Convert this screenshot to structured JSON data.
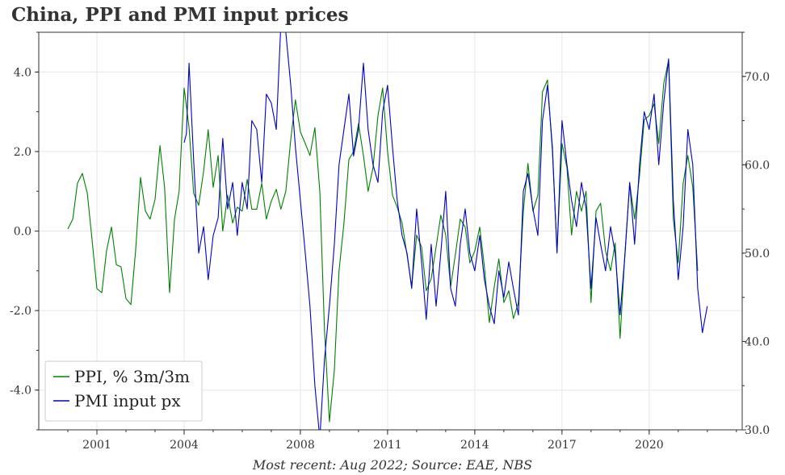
{
  "title": "China, PPI and PMI input prices",
  "footer": "Most recent: Aug 2022; Source: EAE, NBS",
  "colors": {
    "ppi": "#008000",
    "pmi": "#0000cc",
    "grid": "#e6e6e6",
    "axis": "#333333"
  },
  "chart_data": {
    "type": "line",
    "title": "China, PPI and PMI input prices",
    "x_axis": {
      "min": 1999.0,
      "max": 2023.2,
      "ticks": [
        2001,
        2004,
        2008,
        2011,
        2014,
        2017,
        2020
      ],
      "tick_labels": [
        "2001",
        "2004",
        "2008",
        "2011",
        "2014",
        "2017",
        "2020"
      ]
    },
    "y_left": {
      "min": -5.0,
      "max": 5.0,
      "ticks": [
        -4.0,
        -2.0,
        0.0,
        2.0,
        4.0
      ],
      "tick_labels": [
        "-4.0",
        "-2.0",
        "0.0",
        "2.0",
        "4.0"
      ]
    },
    "y_right": {
      "min": 30.0,
      "max": 75.0,
      "ticks": [
        30.0,
        40.0,
        50.0,
        60.0,
        70.0
      ],
      "tick_labels": [
        "30.0",
        "40.0",
        "50.0",
        "60.0",
        "70.0"
      ]
    },
    "legend": {
      "position": "bottom-left",
      "entries": [
        "PPI, % 3m/3m",
        "PMI input px"
      ]
    },
    "series": [
      {
        "name": "PPI, % 3m/3m",
        "axis": "left",
        "color": "#008000",
        "points": [
          [
            2000.0,
            0.05
          ],
          [
            2000.17,
            0.3
          ],
          [
            2000.33,
            1.2
          ],
          [
            2000.5,
            1.45
          ],
          [
            2000.67,
            0.95
          ],
          [
            2000.83,
            -0.2
          ],
          [
            2001.0,
            -1.45
          ],
          [
            2001.17,
            -1.55
          ],
          [
            2001.33,
            -0.5
          ],
          [
            2001.5,
            0.1
          ],
          [
            2001.67,
            -0.85
          ],
          [
            2001.83,
            -0.9
          ],
          [
            2002.0,
            -1.7
          ],
          [
            2002.17,
            -1.85
          ],
          [
            2002.33,
            -0.5
          ],
          [
            2002.5,
            1.35
          ],
          [
            2002.67,
            0.5
          ],
          [
            2002.83,
            0.3
          ],
          [
            2003.0,
            0.8
          ],
          [
            2003.17,
            2.15
          ],
          [
            2003.33,
            1.1
          ],
          [
            2003.5,
            -1.55
          ],
          [
            2003.67,
            0.3
          ],
          [
            2003.83,
            1.0
          ],
          [
            2004.0,
            3.6
          ],
          [
            2004.17,
            2.6
          ],
          [
            2004.33,
            0.95
          ],
          [
            2004.5,
            0.65
          ],
          [
            2004.67,
            1.5
          ],
          [
            2004.83,
            2.55
          ],
          [
            2005.0,
            1.1
          ],
          [
            2005.17,
            1.9
          ],
          [
            2005.33,
            0.0
          ],
          [
            2005.5,
            0.9
          ],
          [
            2005.67,
            0.2
          ],
          [
            2005.83,
            0.6
          ],
          [
            2006.0,
            0.5
          ],
          [
            2006.17,
            1.3
          ],
          [
            2006.33,
            0.55
          ],
          [
            2006.5,
            0.55
          ],
          [
            2006.67,
            1.2
          ],
          [
            2006.83,
            0.3
          ],
          [
            2007.0,
            0.75
          ],
          [
            2007.17,
            1.05
          ],
          [
            2007.33,
            0.55
          ],
          [
            2007.5,
            1.0
          ],
          [
            2007.67,
            2.3
          ],
          [
            2007.83,
            3.3
          ],
          [
            2008.0,
            2.5
          ],
          [
            2008.17,
            2.2
          ],
          [
            2008.33,
            1.9
          ],
          [
            2008.5,
            2.6
          ],
          [
            2008.67,
            1.0
          ],
          [
            2008.83,
            -2.5
          ],
          [
            2009.0,
            -4.8
          ],
          [
            2009.17,
            -3.5
          ],
          [
            2009.33,
            -1.0
          ],
          [
            2009.5,
            0.2
          ],
          [
            2009.67,
            1.8
          ],
          [
            2009.83,
            2.0
          ],
          [
            2010.0,
            2.7
          ],
          [
            2010.17,
            1.9
          ],
          [
            2010.33,
            1.0
          ],
          [
            2010.5,
            1.6
          ],
          [
            2010.67,
            2.9
          ],
          [
            2010.83,
            3.6
          ],
          [
            2011.0,
            2.0
          ],
          [
            2011.17,
            0.9
          ],
          [
            2011.33,
            0.6
          ],
          [
            2011.5,
            0.2
          ],
          [
            2011.67,
            -0.6
          ],
          [
            2011.83,
            -1.4
          ],
          [
            2012.0,
            -0.1
          ],
          [
            2012.17,
            -0.4
          ],
          [
            2012.33,
            -1.5
          ],
          [
            2012.5,
            -1.2
          ],
          [
            2012.67,
            -0.4
          ],
          [
            2012.83,
            0.4
          ],
          [
            2013.0,
            -0.1
          ],
          [
            2013.17,
            -1.4
          ],
          [
            2013.33,
            -0.6
          ],
          [
            2013.5,
            0.3
          ],
          [
            2013.67,
            0.1
          ],
          [
            2013.83,
            -0.8
          ],
          [
            2014.0,
            -0.5
          ],
          [
            2014.17,
            0.1
          ],
          [
            2014.33,
            -0.9
          ],
          [
            2014.5,
            -2.3
          ],
          [
            2014.67,
            -1.4
          ],
          [
            2014.83,
            -0.7
          ],
          [
            2015.0,
            -1.8
          ],
          [
            2015.17,
            -1.5
          ],
          [
            2015.33,
            -2.2
          ],
          [
            2015.5,
            -1.8
          ],
          [
            2015.67,
            0.5
          ],
          [
            2015.83,
            1.7
          ],
          [
            2016.0,
            0.5
          ],
          [
            2016.17,
            0.9
          ],
          [
            2016.33,
            3.5
          ],
          [
            2016.5,
            3.8
          ],
          [
            2016.67,
            2.0
          ],
          [
            2016.83,
            -0.5
          ],
          [
            2017.0,
            2.2
          ],
          [
            2017.17,
            1.6
          ],
          [
            2017.33,
            -0.1
          ],
          [
            2017.5,
            1.0
          ],
          [
            2017.67,
            0.5
          ],
          [
            2017.83,
            1.0
          ],
          [
            2018.0,
            -1.8
          ],
          [
            2018.17,
            0.5
          ],
          [
            2018.33,
            0.7
          ],
          [
            2018.5,
            -0.5
          ],
          [
            2018.67,
            -1.0
          ],
          [
            2018.83,
            -0.3
          ],
          [
            2019.0,
            -2.7
          ],
          [
            2019.17,
            -0.5
          ],
          [
            2019.33,
            1.2
          ],
          [
            2019.5,
            0.3
          ],
          [
            2019.67,
            1.4
          ],
          [
            2019.83,
            2.8
          ],
          [
            2020.0,
            2.9
          ],
          [
            2020.17,
            3.2
          ],
          [
            2020.33,
            2.2
          ],
          [
            2020.5,
            3.7
          ],
          [
            2020.67,
            4.3
          ],
          [
            2020.83,
            0.3
          ],
          [
            2021.0,
            -0.8
          ],
          [
            2021.17,
            1.2
          ],
          [
            2021.33,
            1.9
          ],
          [
            2021.5,
            1.1
          ],
          [
            2021.67,
            -1.0
          ]
        ]
      },
      {
        "name": "PMI input px",
        "axis": "right",
        "color": "#0000cc",
        "points": [
          [
            2004.0,
            62.5
          ],
          [
            2004.08,
            63.5
          ],
          [
            2004.17,
            71.5
          ],
          [
            2004.33,
            60.5
          ],
          [
            2004.5,
            50.0
          ],
          [
            2004.67,
            53.0
          ],
          [
            2004.83,
            47.0
          ],
          [
            2005.0,
            52.0
          ],
          [
            2005.17,
            54.0
          ],
          [
            2005.33,
            63.0
          ],
          [
            2005.5,
            55.0
          ],
          [
            2005.67,
            58.0
          ],
          [
            2005.83,
            52.0
          ],
          [
            2006.0,
            58.0
          ],
          [
            2006.17,
            55.0
          ],
          [
            2006.33,
            65.0
          ],
          [
            2006.5,
            64.0
          ],
          [
            2006.67,
            58.0
          ],
          [
            2006.83,
            68.0
          ],
          [
            2007.0,
            67.0
          ],
          [
            2007.17,
            64.0
          ],
          [
            2007.33,
            76.0
          ],
          [
            2007.5,
            75.0
          ],
          [
            2007.67,
            69.0
          ],
          [
            2007.83,
            62.0
          ],
          [
            2008.0,
            56.0
          ],
          [
            2008.17,
            50.0
          ],
          [
            2008.33,
            44.0
          ],
          [
            2008.5,
            35.0
          ],
          [
            2008.67,
            29.0
          ],
          [
            2008.83,
            38.0
          ],
          [
            2009.0,
            44.0
          ],
          [
            2009.17,
            51.0
          ],
          [
            2009.33,
            60.0
          ],
          [
            2009.5,
            64.0
          ],
          [
            2009.67,
            68.0
          ],
          [
            2009.83,
            61.0
          ],
          [
            2010.0,
            64.0
          ],
          [
            2010.17,
            71.5
          ],
          [
            2010.33,
            64.0
          ],
          [
            2010.5,
            60.0
          ],
          [
            2010.67,
            58.0
          ],
          [
            2010.83,
            66.0
          ],
          [
            2011.0,
            69.0
          ],
          [
            2011.17,
            62.0
          ],
          [
            2011.33,
            56.0
          ],
          [
            2011.5,
            52.0
          ],
          [
            2011.67,
            50.0
          ],
          [
            2011.83,
            46.0
          ],
          [
            2012.0,
            55.0
          ],
          [
            2012.17,
            49.0
          ],
          [
            2012.33,
            42.5
          ],
          [
            2012.5,
            51.0
          ],
          [
            2012.67,
            44.0
          ],
          [
            2012.83,
            50.0
          ],
          [
            2013.0,
            57.0
          ],
          [
            2013.17,
            46.0
          ],
          [
            2013.33,
            44.0
          ],
          [
            2013.5,
            51.0
          ],
          [
            2013.67,
            55.0
          ],
          [
            2013.83,
            50.0
          ],
          [
            2014.0,
            48.0
          ],
          [
            2014.17,
            52.0
          ],
          [
            2014.33,
            47.0
          ],
          [
            2014.5,
            44.0
          ],
          [
            2014.67,
            42.0
          ],
          [
            2014.83,
            48.0
          ],
          [
            2015.0,
            45.0
          ],
          [
            2015.17,
            49.0
          ],
          [
            2015.33,
            46.0
          ],
          [
            2015.5,
            43.0
          ],
          [
            2015.67,
            57.0
          ],
          [
            2015.83,
            59.0
          ],
          [
            2016.0,
            55.0
          ],
          [
            2016.17,
            52.0
          ],
          [
            2016.33,
            65.0
          ],
          [
            2016.5,
            69.0
          ],
          [
            2016.67,
            62.0
          ],
          [
            2016.83,
            50.0
          ],
          [
            2017.0,
            65.0
          ],
          [
            2017.17,
            60.0
          ],
          [
            2017.33,
            56.0
          ],
          [
            2017.5,
            53.0
          ],
          [
            2017.67,
            58.0
          ],
          [
            2017.83,
            55.0
          ],
          [
            2018.0,
            46.0
          ],
          [
            2018.17,
            54.0
          ],
          [
            2018.33,
            51.0
          ],
          [
            2018.5,
            48.0
          ],
          [
            2018.67,
            53.0
          ],
          [
            2018.83,
            50.0
          ],
          [
            2019.0,
            43.0
          ],
          [
            2019.17,
            50.0
          ],
          [
            2019.33,
            58.0
          ],
          [
            2019.5,
            51.0
          ],
          [
            2019.67,
            60.0
          ],
          [
            2019.83,
            66.0
          ],
          [
            2020.0,
            64.0
          ],
          [
            2020.17,
            68.0
          ],
          [
            2020.33,
            60.0
          ],
          [
            2020.5,
            67.0
          ],
          [
            2020.67,
            72.0
          ],
          [
            2020.83,
            56.0
          ],
          [
            2021.0,
            47.0
          ],
          [
            2021.17,
            53.0
          ],
          [
            2021.33,
            64.0
          ],
          [
            2021.5,
            60.0
          ],
          [
            2021.67,
            46.0
          ],
          [
            2021.83,
            41.0
          ],
          [
            2022.0,
            44.0
          ]
        ]
      }
    ]
  }
}
